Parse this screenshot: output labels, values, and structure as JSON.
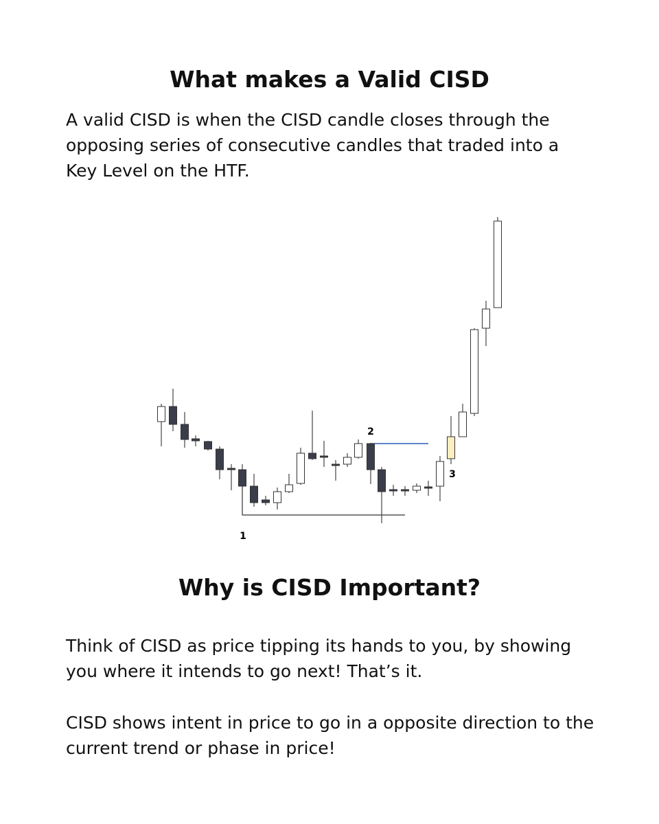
{
  "header": {
    "title": "What makes a Valid CISD"
  },
  "intro": "A valid CISD is when the CISD candle closes through the opposing series of consecutive candles that traded into a Key Level on the HTF.",
  "diagram": {
    "labels": [
      "1",
      "2",
      "3"
    ]
  },
  "section": {
    "title": "Why is CISD Important?",
    "paragraphs": [
      "Think of CISD as price tipping its hands to you, by showing you where it intends to go next! That’s it.",
      "CISD shows intent in price to go in a opposite direction to the current trend or phase in price!"
    ]
  }
}
